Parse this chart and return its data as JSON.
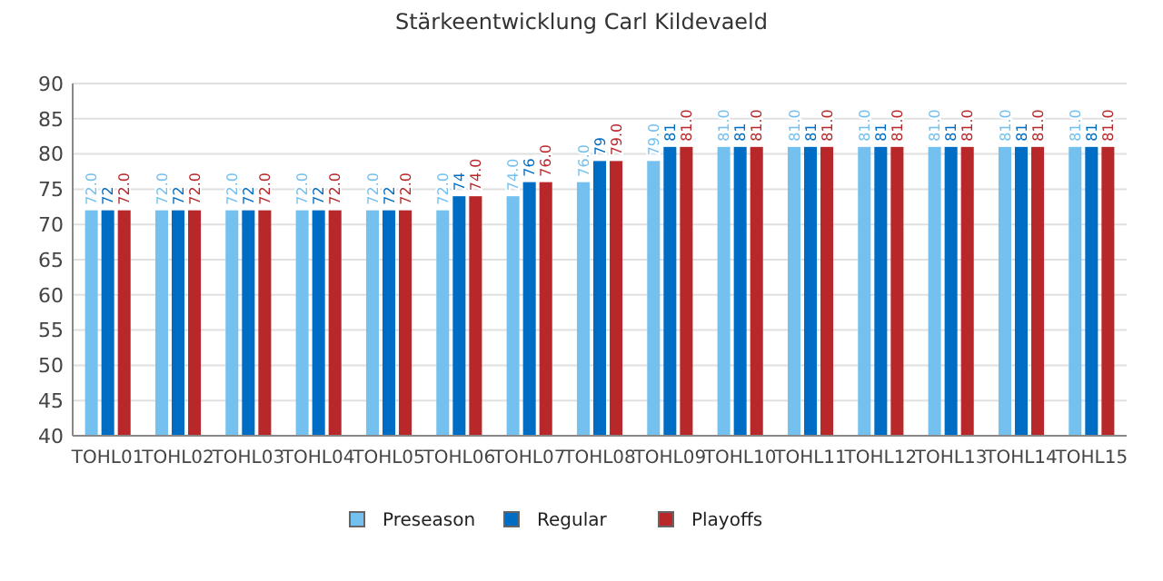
{
  "chart_data": {
    "type": "bar",
    "title": "Stärkeentwicklung Carl Kildevaeld",
    "categories": [
      "TOHL01",
      "TOHL02",
      "TOHL03",
      "TOHL04",
      "TOHL05",
      "TOHL06",
      "TOHL07",
      "TOHL08",
      "TOHL09",
      "TOHL10",
      "TOHL11",
      "TOHL12",
      "TOHL13",
      "TOHL14",
      "TOHL15"
    ],
    "series": [
      {
        "name": "Preseason",
        "color": "#74c0ee",
        "values": [
          72,
          72,
          72,
          72,
          72,
          72,
          74,
          76,
          79,
          81,
          81,
          81,
          81,
          81,
          81
        ],
        "value_labels": [
          "72.0",
          "72.0",
          "72.0",
          "72.0",
          "72.0",
          "72.0",
          "74.0",
          "76.0",
          "79.0",
          "81.0",
          "81.0",
          "81.0",
          "81.0",
          "81.0",
          "81.0"
        ]
      },
      {
        "name": "Regular",
        "color": "#006dc5",
        "values": [
          72,
          72,
          72,
          72,
          72,
          74,
          76,
          79,
          81,
          81,
          81,
          81,
          81,
          81,
          81
        ],
        "value_labels": [
          "72",
          "72",
          "72",
          "72",
          "72",
          "74",
          "76",
          "79",
          "81",
          "81",
          "81",
          "81",
          "81",
          "81",
          "81"
        ]
      },
      {
        "name": "Playoffs",
        "color": "#b8282a",
        "values": [
          72,
          72,
          72,
          72,
          72,
          74,
          76,
          79,
          81,
          81,
          81,
          81,
          81,
          81,
          81
        ],
        "value_labels": [
          "72.0",
          "72.0",
          "72.0",
          "72.0",
          "72.0",
          "74.0",
          "76.0",
          "79.0",
          "81.0",
          "81.0",
          "81.0",
          "81.0",
          "81.0",
          "81.0",
          "81.0"
        ]
      }
    ],
    "ylim": [
      40,
      90
    ],
    "yticks": [
      40,
      45,
      50,
      55,
      60,
      65,
      70,
      75,
      80,
      85,
      90
    ],
    "grid": "y",
    "legend": "bottom"
  }
}
